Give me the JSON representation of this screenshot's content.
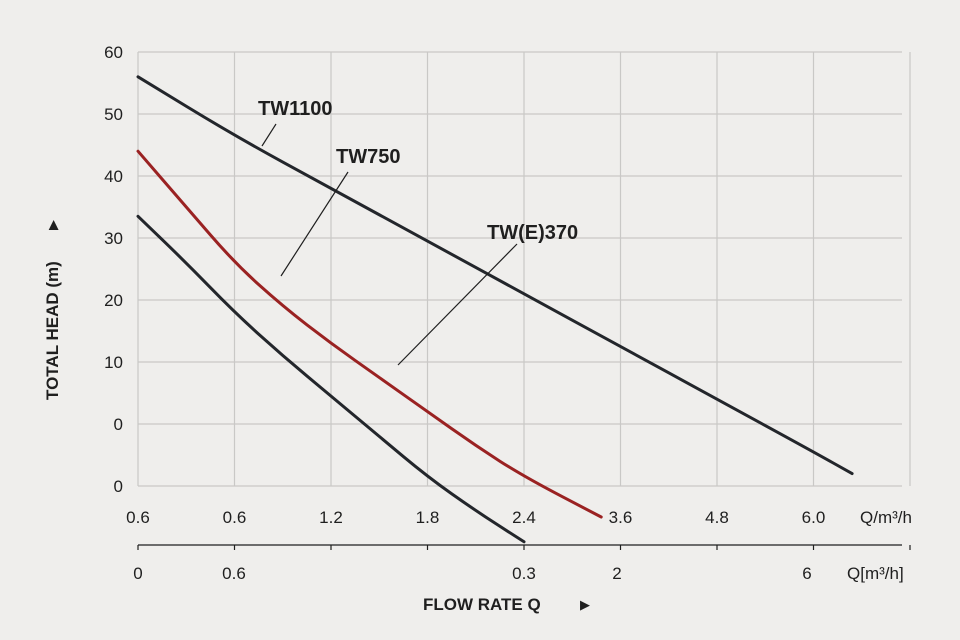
{
  "chart_data": {
    "type": "line",
    "title": "",
    "xlabel": "FLOW RATE Q",
    "xlabel_arrow": "▶",
    "ylabel": "TOTAL HEAD (m)",
    "ylabel_arrow": "▶",
    "grid": true,
    "colors": {
      "background": "#efeeec",
      "grid": "#c9c8c6",
      "text": "#1f1f1f"
    },
    "y_tick_labels": [
      "60",
      "50",
      "40",
      "30",
      "20",
      "10",
      "0",
      "0"
    ],
    "x_tick_labels": [
      "0.6",
      "0.6",
      "1.2",
      "1.8",
      "2.4",
      "3.6",
      "4.8",
      "6.0"
    ],
    "x_unit_label": "Q/m³/h",
    "x2_tick_labels": [
      "0",
      "0.6",
      "0.3",
      "2",
      "6"
    ],
    "x2_unit_label": "Q[m³/h]",
    "series": [
      {
        "name": "TW1100",
        "color": "#23262b",
        "x": [
          0,
          1,
          2,
          3,
          4,
          5,
          6,
          7,
          7.4
        ],
        "y": [
          56,
          46.5,
          38,
          29.5,
          21,
          12.5,
          4,
          -4.5,
          -8
        ]
      },
      {
        "name": "TW750",
        "color": "#9a2222",
        "x": [
          0,
          0.5,
          1,
          1.5,
          2,
          2.5,
          3,
          3.5,
          4,
          4.8
        ],
        "y": [
          44,
          35,
          26,
          19,
          13,
          7.5,
          2,
          -3.5,
          -8.5,
          -15
        ]
      },
      {
        "name": "TW(E)370",
        "color": "#23262b",
        "x": [
          0,
          0.5,
          1,
          1.5,
          2,
          2.5,
          3,
          3.5,
          4
        ],
        "y": [
          33.5,
          26,
          18,
          11,
          4.5,
          -2,
          -8.5,
          -14,
          -19
        ]
      }
    ]
  }
}
